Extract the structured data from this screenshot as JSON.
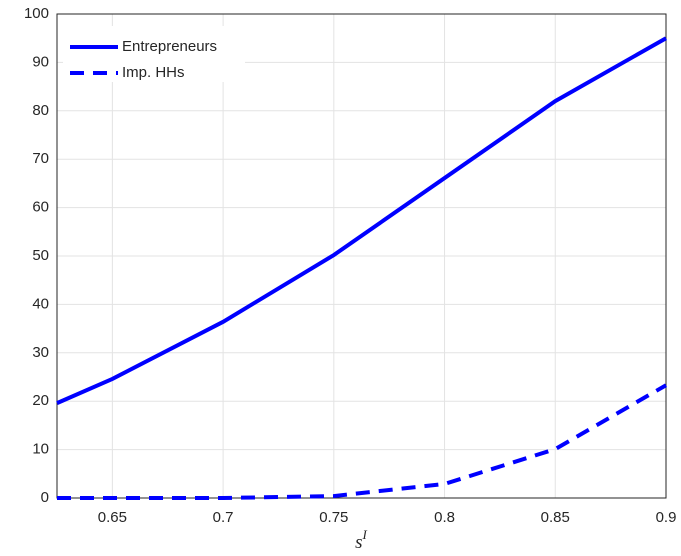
{
  "chart_data": {
    "type": "line",
    "xlabel": {
      "base": "s",
      "sup": "I"
    },
    "x": [
      0.625,
      0.65,
      0.7,
      0.75,
      0.8,
      0.85,
      0.9
    ],
    "series": [
      {
        "name": "Entrepreneurs",
        "color": "#0000ff",
        "style": "solid",
        "values": [
          19.6,
          24.6,
          36.4,
          50.2,
          66.1,
          82.0,
          95.0
        ]
      },
      {
        "name": "Imp. HHs",
        "color": "#0000ff",
        "style": "dashed",
        "values": [
          0,
          0,
          0,
          0.4,
          2.9,
          10.1,
          23.3
        ]
      }
    ],
    "xlim": [
      0.625,
      0.9
    ],
    "xticks": [
      0.65,
      0.7,
      0.75,
      0.8,
      0.85,
      0.9
    ],
    "ylim": [
      0,
      100
    ],
    "yticks": [
      0,
      10,
      20,
      30,
      40,
      50,
      60,
      70,
      80,
      90,
      100
    ],
    "grid": true,
    "legend": "upper-left"
  }
}
